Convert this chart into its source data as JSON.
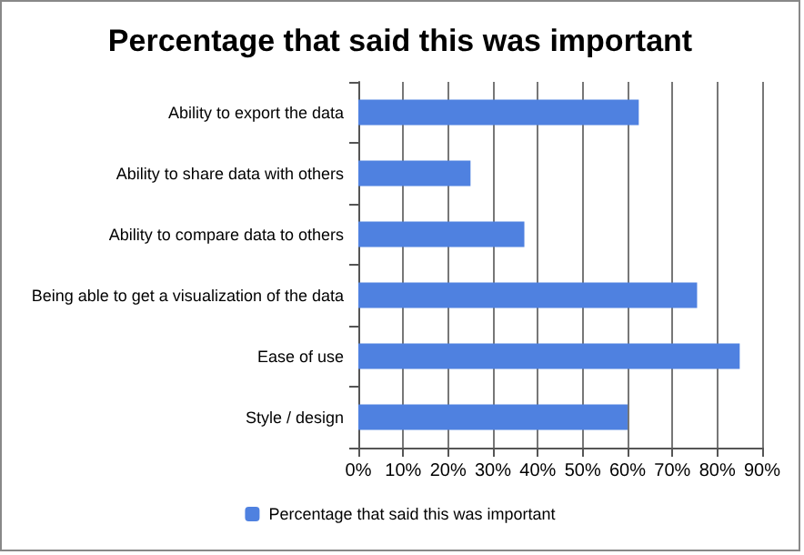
{
  "chart_data": {
    "type": "bar",
    "orientation": "horizontal",
    "title": "Percentage that said this was important",
    "categories": [
      "Ability to export the data",
      "Ability to share data with others",
      "Ability to compare data to others",
      "Being able to get a visualization of the data",
      "Ease of use",
      "Style / design"
    ],
    "series": [
      {
        "name": "Percentage that said this was important",
        "color": "#4f81e0",
        "values": [
          62.5,
          25,
          37,
          75.5,
          85,
          60
        ]
      }
    ],
    "xlim": [
      0,
      90
    ],
    "xticks": [
      {
        "value": 0,
        "label": "0%"
      },
      {
        "value": 10,
        "label": "10%"
      },
      {
        "value": 20,
        "label": "20%"
      },
      {
        "value": 30,
        "label": "30%"
      },
      {
        "value": 40,
        "label": "40%"
      },
      {
        "value": 50,
        "label": "50%"
      },
      {
        "value": 60,
        "label": "60%"
      },
      {
        "value": 70,
        "label": "70%"
      },
      {
        "value": 80,
        "label": "80%"
      },
      {
        "value": 90,
        "label": "90%"
      }
    ],
    "grid": "x",
    "legend": "bottom"
  }
}
